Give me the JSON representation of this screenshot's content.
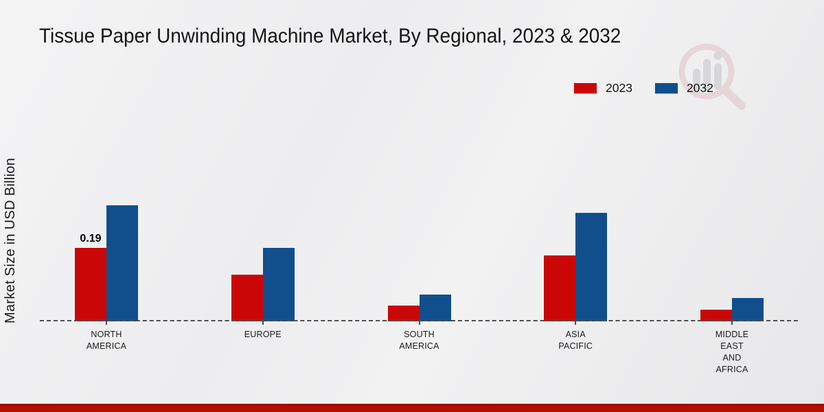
{
  "page": {
    "title": "Tissue Paper Unwinding Machine Market, By Regional, 2023 & 2032"
  },
  "colors": {
    "series_2023": "#c90707",
    "series_2032": "#114e8c",
    "bottom_bar": "#b60d00",
    "baseline": "#4d4d4d",
    "text": "#1a1a1a",
    "watermark_ring": "#dfb9bc",
    "watermark_bars": "#bcbcc2"
  },
  "legend": {
    "items": [
      {
        "label": "2023",
        "color": "#c90707"
      },
      {
        "label": "2032",
        "color": "#114e8c"
      }
    ]
  },
  "y_axis": {
    "label": "Market Size in USD Billion"
  },
  "watermark": {
    "icon": "magnifier-bar-chart-watermark"
  },
  "chart_data": {
    "type": "bar",
    "title": "Tissue Paper Unwinding Machine Market, By Regional, 2023 & 2032",
    "categories": [
      "NORTH AMERICA",
      "EUROPE",
      "SOUTH AMERICA",
      "ASIA PACIFIC",
      "MIDDLE EAST AND AFRICA"
    ],
    "categories_multiline": [
      "NORTH\nAMERICA",
      "EUROPE",
      "SOUTH\nAMERICA",
      "ASIA\nPACIFIC",
      "MIDDLE\nEAST\nAND\nAFRICA"
    ],
    "series": [
      {
        "name": "2023",
        "color": "#c90707",
        "values": [
          0.19,
          0.12,
          0.04,
          0.17,
          0.03
        ]
      },
      {
        "name": "2032",
        "color": "#114e8c",
        "values": [
          0.3,
          0.19,
          0.07,
          0.28,
          0.06
        ]
      }
    ],
    "annotations": [
      {
        "series": "2023",
        "category": "NORTH AMERICA",
        "text": "0.19"
      }
    ],
    "xlabel": "",
    "ylabel": "Market Size in USD Billion",
    "ylim": [
      0,
      0.35
    ],
    "grid": false,
    "legend_position": "top-right",
    "baseline_style": "dashed"
  }
}
